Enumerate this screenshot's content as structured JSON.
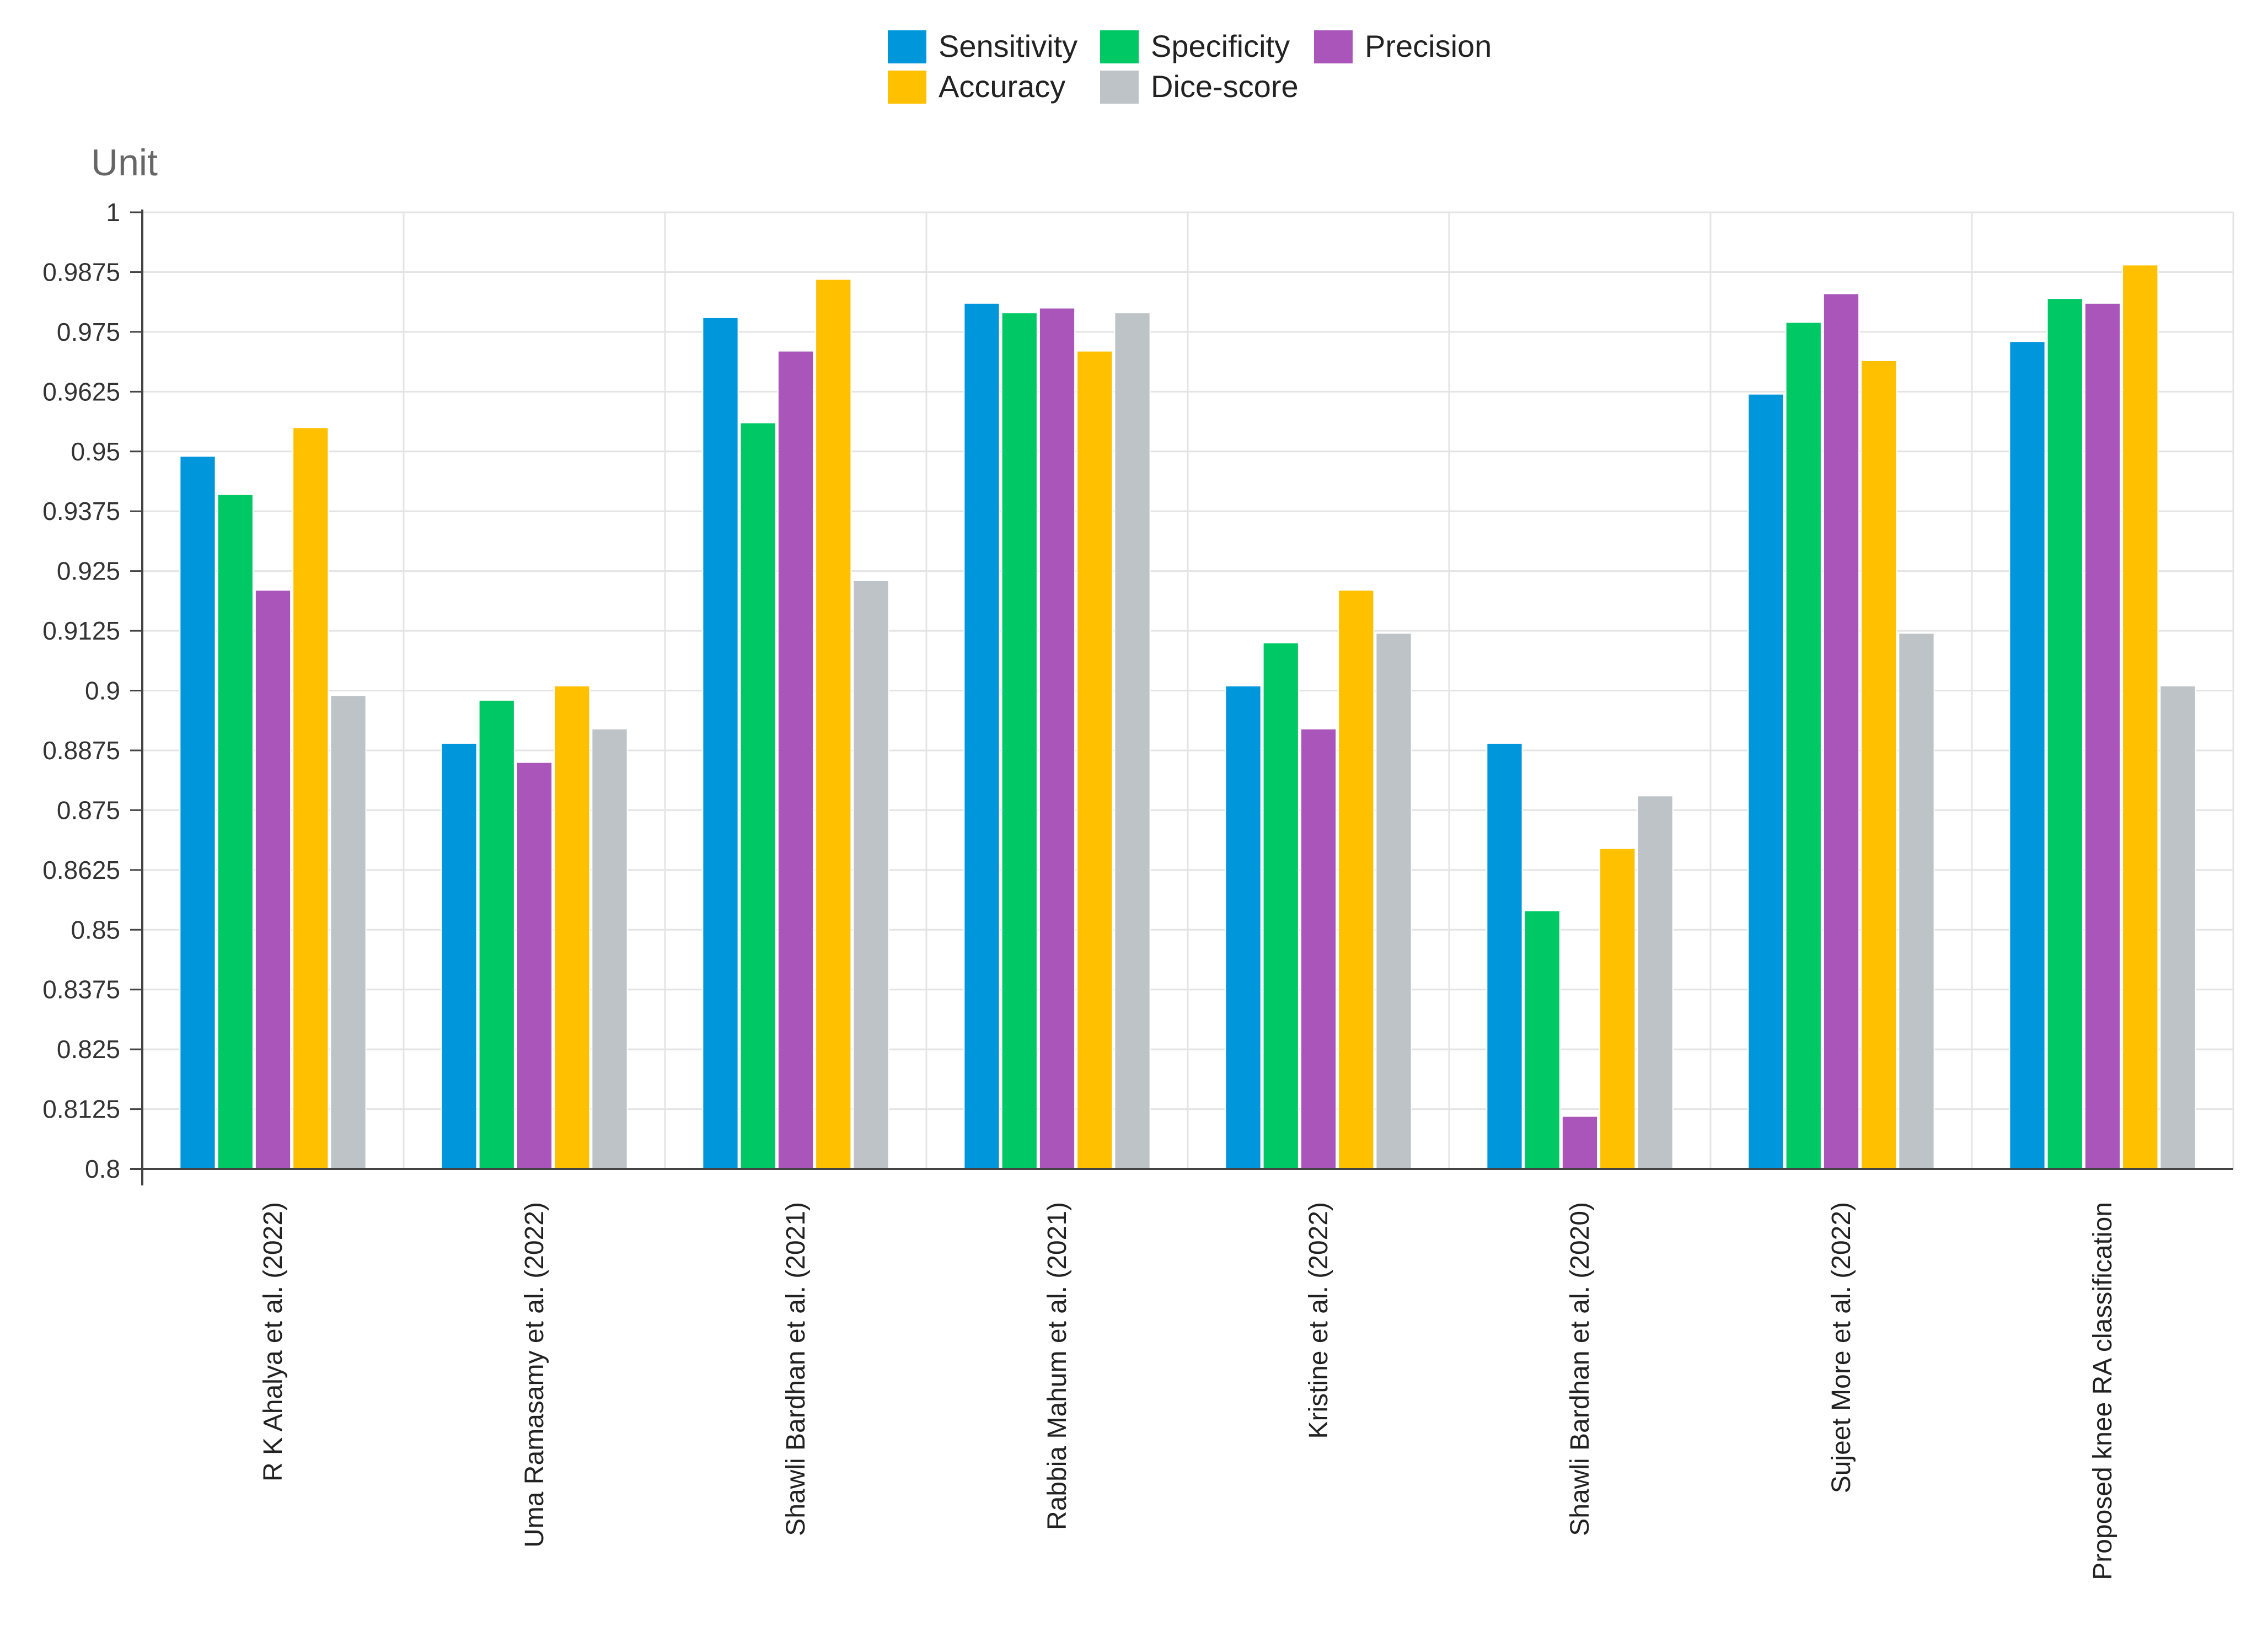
{
  "chart_data": {
    "type": "bar",
    "title": "",
    "ylabel": "Unit",
    "xlabel": "",
    "ylim": [
      0.8,
      1
    ],
    "yticks": [
      0.8,
      0.8125,
      0.825,
      0.8375,
      0.85,
      0.8625,
      0.875,
      0.8875,
      0.9,
      0.9125,
      0.925,
      0.9375,
      0.95,
      0.9625,
      0.975,
      0.9875,
      1
    ],
    "ytick_labels": [
      "0.8",
      "0.8125",
      "0.825",
      "0.8375",
      "0.85",
      "0.8625",
      "0.875",
      "0.8875",
      "0.9",
      "0.9125",
      "0.925",
      "0.9375",
      "0.95",
      "0.9625",
      "0.975",
      "0.9875",
      "1"
    ],
    "grid": true,
    "legend_position": "top-center",
    "categories": [
      "R K Ahalya et al. (2022)",
      "Uma Ramasamy et al. (2022)",
      "Shawli Bardhan et al. (2021)",
      "Rabbia Mahum et al. (2021)",
      "Kristine et al. (2022)",
      "Shawli Bardhan et al. (2020)",
      "Sujeet More et al. (2022)",
      "Proposed knee RA classification"
    ],
    "series": [
      {
        "name": "Sensitivity",
        "color": "#0096dc",
        "values": [
          0.949,
          0.889,
          0.978,
          0.981,
          0.901,
          0.889,
          0.962,
          0.973
        ]
      },
      {
        "name": "Specificity",
        "color": "#00c864",
        "values": [
          0.941,
          0.898,
          0.956,
          0.979,
          0.91,
          0.854,
          0.977,
          0.982
        ]
      },
      {
        "name": "Precision",
        "color": "#aa55b9",
        "values": [
          0.921,
          0.885,
          0.971,
          0.98,
          0.892,
          0.811,
          0.983,
          0.981
        ]
      },
      {
        "name": "Accuracy",
        "color": "#ffc000",
        "values": [
          0.955,
          0.901,
          0.986,
          0.971,
          0.921,
          0.867,
          0.969,
          0.989
        ]
      },
      {
        "name": "Dice-score",
        "color": "#bdc3c7",
        "values": [
          0.899,
          0.892,
          0.923,
          0.979,
          0.912,
          0.878,
          0.912,
          0.901
        ]
      }
    ]
  }
}
